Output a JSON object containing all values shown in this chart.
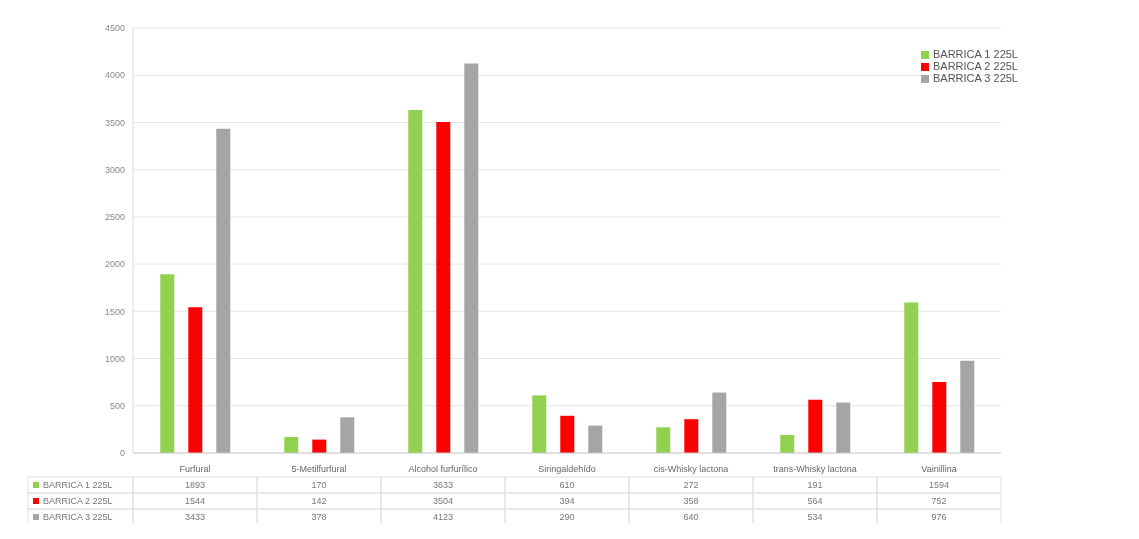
{
  "chart_data": {
    "type": "bar",
    "categories": [
      "Furfural",
      "5-Metilfurfural",
      "Alcohol furfurílico",
      "Siringaldehído",
      "cis-Whisky lactona",
      "trans-Whisky lactona",
      "Vainillina"
    ],
    "series": [
      {
        "name": "BARRICA 1 225L",
        "color": "#92d050",
        "values": [
          1893,
          170,
          3633,
          610,
          272,
          191,
          1594
        ]
      },
      {
        "name": "BARRICA 2 225L",
        "color": "#ff0000",
        "values": [
          1544,
          142,
          3504,
          394,
          358,
          564,
          752
        ]
      },
      {
        "name": "BARRICA 3 225L",
        "color": "#a5a5a5",
        "values": [
          3433,
          378,
          4123,
          290,
          640,
          534,
          976
        ]
      }
    ],
    "ylim": [
      0,
      4500
    ],
    "yticks": [
      0,
      500,
      1000,
      1500,
      2000,
      2500,
      3000,
      3500,
      4000,
      4500
    ],
    "grid": "y",
    "legend": "top right",
    "data_labels": true
  }
}
